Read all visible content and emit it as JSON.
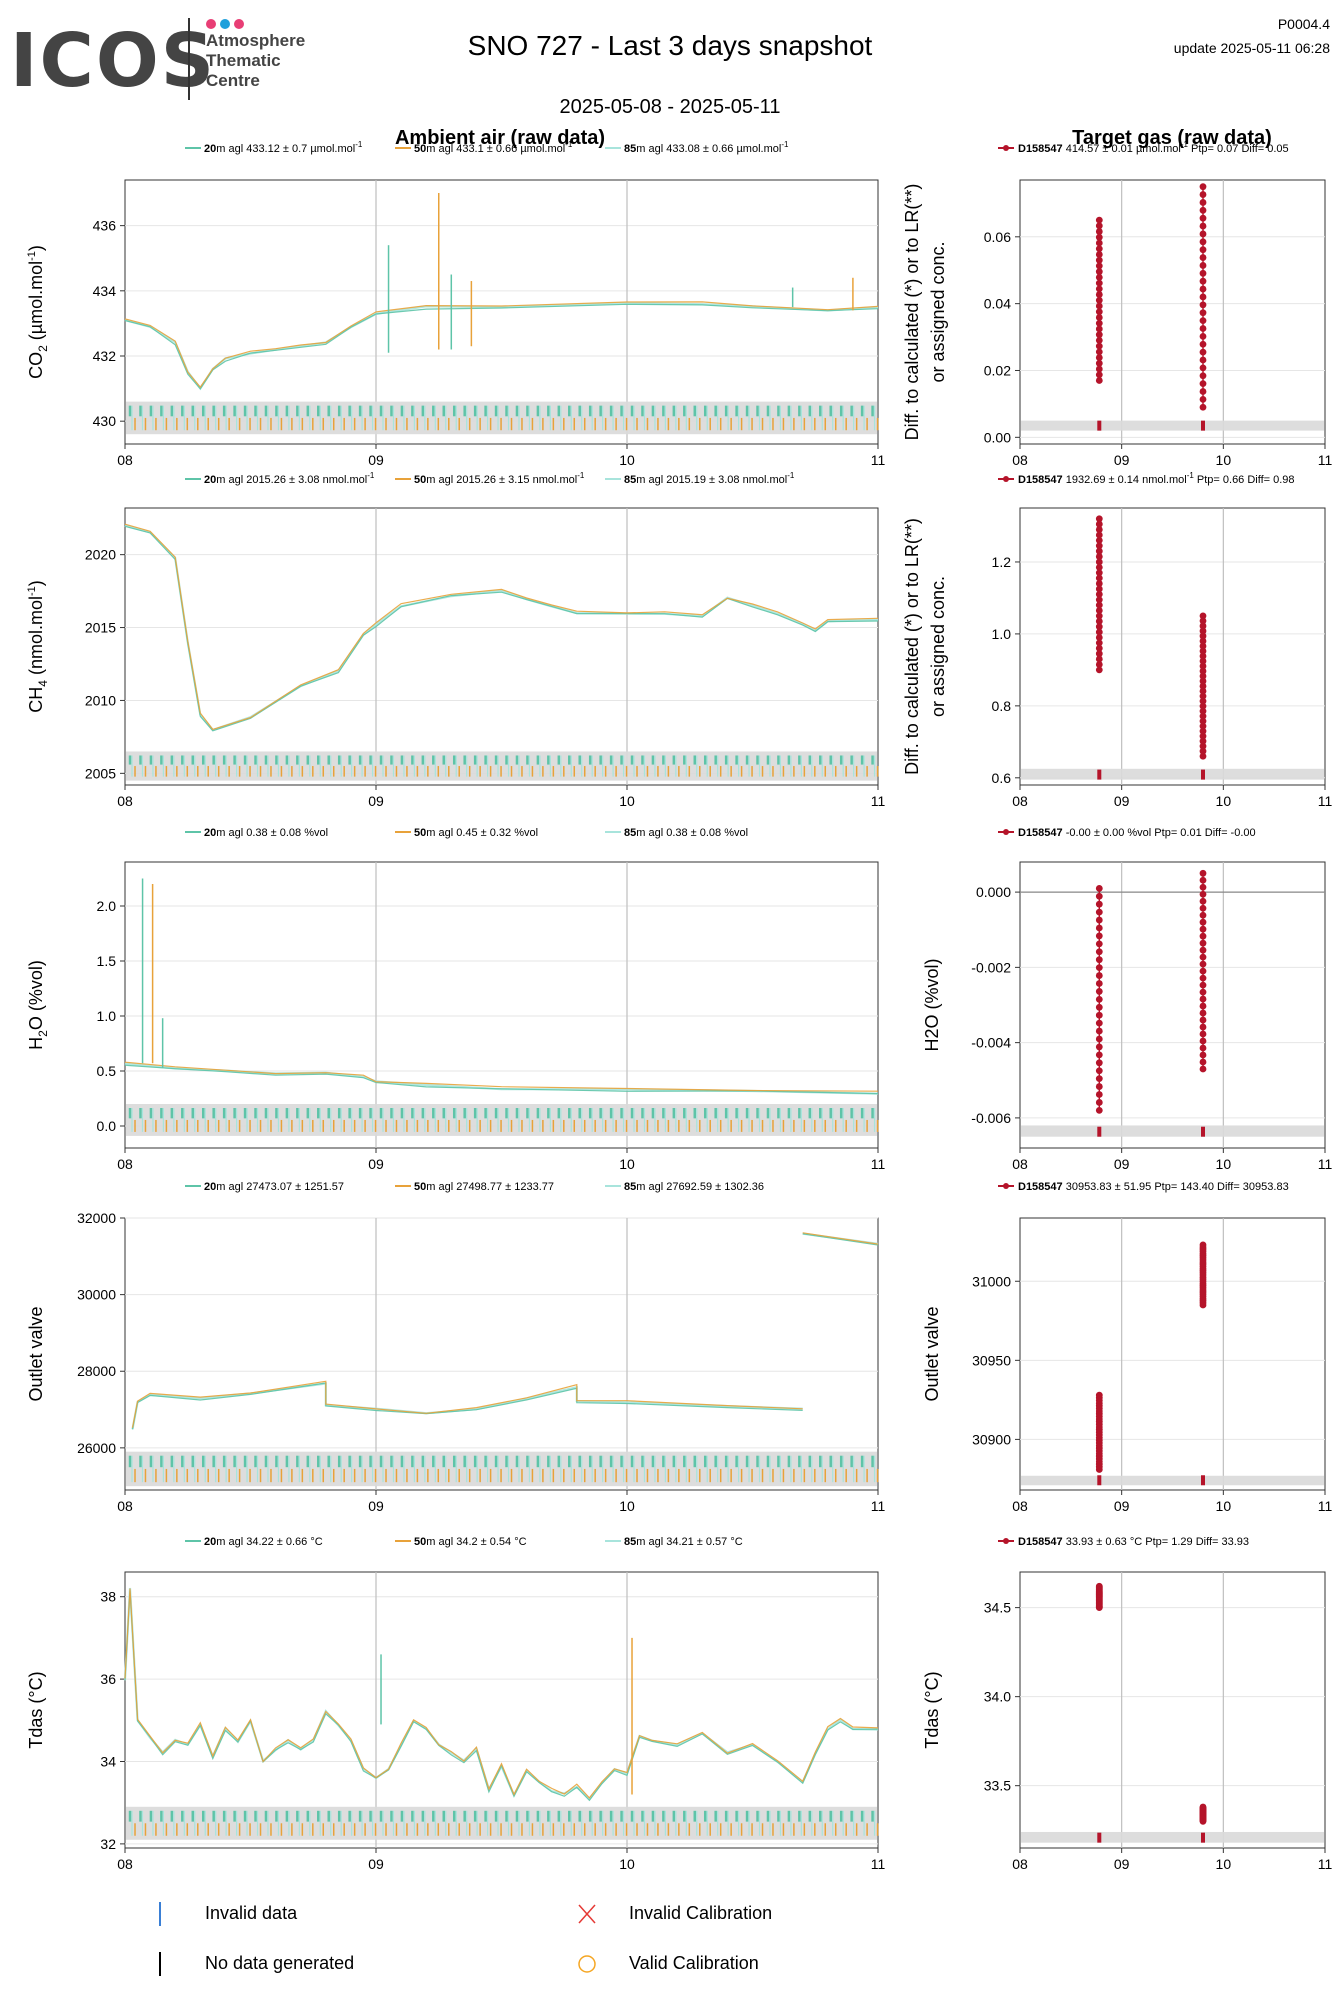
{
  "header": {
    "logo_letters": "ICOS",
    "logo_subtitle": [
      "Atmosphere",
      "Thematic",
      "Centre"
    ],
    "logo_dot_colors": [
      "#e83e75",
      "#1fa0dc",
      "#e83e75"
    ],
    "title": "SNO 727 - Last 3 days snapshot",
    "date_range": "2025-05-08 - 2025-05-11",
    "ref_code": "P0004.4",
    "update": "update  2025-05-11 06:28"
  },
  "sections": {
    "ambient_title": "Ambient air (raw data)",
    "target_title": "Target gas (raw data)"
  },
  "colors": {
    "h20": "#5ec4a8",
    "h50": "#e8a23a",
    "h85": "#a8e4dc",
    "target": "#b5142a",
    "band": "#d9d9d9",
    "invalid_data": "#3a7fd5",
    "no_data": "#000000",
    "invalid_cal": "#e53935",
    "valid_cal": "#f5a623"
  },
  "chart_data": [
    {
      "type": "line",
      "panel": "CO2 ambient",
      "ylabel_main": "CO",
      "ylabel_sub": "2",
      "ylabel_unit": " (µmol.mol",
      "ylabel_sup": "-1",
      "ylabel_end": ")",
      "x_ticks": [
        "08",
        "09",
        "10",
        "11"
      ],
      "xlim": [
        0,
        3
      ],
      "ylim": [
        429.3,
        437.4
      ],
      "y_ticks": [
        430,
        432,
        434,
        436
      ],
      "band": [
        429.6,
        430.6
      ],
      "legend": [
        {
          "height": "20",
          "text": "m agl 433.12 ± 0.7 µmol.mol",
          "sup": "-1"
        },
        {
          "height": "50",
          "text": "m agl 433.1 ± 0.66 µmol.mol",
          "sup": "-1"
        },
        {
          "height": "85",
          "text": "m agl 433.08 ± 0.66 µmol.mol",
          "sup": "-1"
        }
      ],
      "series": [
        {
          "name": "20m",
          "x": [
            0.0,
            0.1,
            0.2,
            0.25,
            0.3,
            0.35,
            0.4,
            0.5,
            0.6,
            0.7,
            0.8,
            0.9,
            1.0,
            1.2,
            1.5,
            2.0,
            2.3,
            2.5,
            2.8,
            3.0
          ],
          "y": [
            433.1,
            432.9,
            432.4,
            431.5,
            431.0,
            431.6,
            431.9,
            432.1,
            432.2,
            432.3,
            432.4,
            432.9,
            433.3,
            433.5,
            433.5,
            433.6,
            433.6,
            433.5,
            433.4,
            433.5
          ]
        }
      ],
      "spikes": [
        {
          "x": 1.05,
          "y": 435.4
        },
        {
          "x": 1.25,
          "y": 437.0
        },
        {
          "x": 1.3,
          "y": 434.5
        },
        {
          "x": 1.38,
          "y": 434.3
        },
        {
          "x": 2.66,
          "y": 434.1
        },
        {
          "x": 2.9,
          "y": 434.4
        }
      ]
    },
    {
      "type": "scatter",
      "panel": "CO2 target",
      "ylabel_lines": [
        "Diff. to calculated (*) or to LR(**)",
        "or assigned conc."
      ],
      "x_ticks": [
        "08",
        "09",
        "10",
        "11"
      ],
      "xlim": [
        0,
        3
      ],
      "ylim": [
        -0.002,
        0.077
      ],
      "y_ticks": [
        0.0,
        0.02,
        0.04,
        0.06
      ],
      "y_tick_labels": [
        "0.00",
        "0.02",
        "0.04",
        "0.06"
      ],
      "band": [
        0.002,
        0.005
      ],
      "legend": {
        "id": "D158547",
        "text": " 414.57 ± 0.01 µmol.mol",
        "sup": "-1",
        "tail": " Ptp= 0.07 Diff= 0.05"
      },
      "groups": [
        {
          "x": 0.78,
          "ymin": 0.017,
          "ymax": 0.065
        },
        {
          "x": 1.8,
          "ymin": 0.009,
          "ymax": 0.075
        }
      ]
    },
    {
      "type": "line",
      "panel": "CH4 ambient",
      "ylabel_main": "CH",
      "ylabel_sub": "4",
      "ylabel_unit": " (nmol.mol",
      "ylabel_sup": "-1",
      "ylabel_end": ")",
      "x_ticks": [
        "08",
        "09",
        "10",
        "11"
      ],
      "xlim": [
        0,
        3
      ],
      "ylim": [
        2004.2,
        2023.2
      ],
      "y_ticks": [
        2005,
        2010,
        2015,
        2020
      ],
      "y_tick_labels": [
        "2005",
        "2010",
        "2015",
        "2020"
      ],
      "band": [
        2004.5,
        2006.5
      ],
      "legend": [
        {
          "height": "20",
          "text": "m agl 2015.26 ± 3.08 nmol.mol",
          "sup": "-1"
        },
        {
          "height": "50",
          "text": "m agl 2015.26 ± 3.15 nmol.mol",
          "sup": "-1"
        },
        {
          "height": "85",
          "text": "m agl 2015.19 ± 3.08 nmol.mol",
          "sup": "-1"
        }
      ],
      "series": [
        {
          "name": "20m",
          "x": [
            0.0,
            0.1,
            0.2,
            0.25,
            0.3,
            0.35,
            0.5,
            0.7,
            0.85,
            0.95,
            1.0,
            1.1,
            1.3,
            1.5,
            1.6,
            1.7,
            1.8,
            2.0,
            2.15,
            2.3,
            2.4,
            2.5,
            2.6,
            2.7,
            2.75,
            2.8,
            3.0
          ],
          "y": [
            2022.0,
            2021.5,
            2019.8,
            2014.0,
            2009.0,
            2008.0,
            2008.8,
            2011.0,
            2012.0,
            2014.5,
            2015.2,
            2016.5,
            2017.2,
            2017.5,
            2017.0,
            2016.5,
            2016.0,
            2016.0,
            2016.0,
            2015.8,
            2017.0,
            2016.5,
            2016.0,
            2015.2,
            2014.8,
            2015.5,
            2015.5
          ]
        }
      ]
    },
    {
      "type": "scatter",
      "panel": "CH4 target",
      "ylabel_lines": [
        "Diff. to calculated (*) or to LR(**)",
        "or assigned conc."
      ],
      "x_ticks": [
        "08",
        "09",
        "10",
        "11"
      ],
      "xlim": [
        0,
        3
      ],
      "ylim": [
        0.58,
        1.35
      ],
      "y_ticks": [
        0.6,
        0.8,
        1.0,
        1.2
      ],
      "y_tick_labels": [
        "0.6",
        "0.8",
        "1.0",
        "1.2"
      ],
      "band": [
        0.595,
        0.625
      ],
      "legend": {
        "id": "D158547",
        "text": " 1932.69 ± 0.14 nmol.mol",
        "sup": "-1",
        "tail": " Ptp= 0.66 Diff= 0.98"
      },
      "groups": [
        {
          "x": 0.78,
          "ymin": 0.9,
          "ymax": 1.32
        },
        {
          "x": 1.8,
          "ymin": 0.66,
          "ymax": 1.05
        }
      ]
    },
    {
      "type": "line",
      "panel": "H2O ambient",
      "ylabel_main": "H",
      "ylabel_sub": "2",
      "ylabel_unit": "O (%vol)",
      "ylabel_sup": "",
      "ylabel_end": "",
      "x_ticks": [
        "08",
        "09",
        "10",
        "11"
      ],
      "xlim": [
        0,
        3
      ],
      "ylim": [
        -0.2,
        2.4
      ],
      "y_ticks": [
        0.0,
        0.5,
        1.0,
        1.5,
        2.0
      ],
      "y_tick_labels": [
        "0.0",
        "0.5",
        "1.0",
        "1.5",
        "2.0"
      ],
      "band": [
        -0.09,
        0.2
      ],
      "legend": [
        {
          "height": "20",
          "text": "m agl 0.38 ± 0.08 %vol",
          "sup": ""
        },
        {
          "height": "50",
          "text": "m agl 0.45 ± 0.32 %vol",
          "sup": ""
        },
        {
          "height": "85",
          "text": "m agl 0.38 ± 0.08 %vol",
          "sup": ""
        }
      ],
      "series": [
        {
          "name": "20m",
          "x": [
            0.0,
            0.2,
            0.4,
            0.6,
            0.8,
            0.95,
            1.0,
            1.2,
            1.5,
            2.0,
            2.5,
            3.0
          ],
          "y": [
            0.57,
            0.53,
            0.5,
            0.47,
            0.48,
            0.45,
            0.4,
            0.37,
            0.34,
            0.33,
            0.32,
            0.3
          ]
        }
      ],
      "spikes": [
        {
          "x": 0.07,
          "y": 2.25
        },
        {
          "x": 0.11,
          "y": 2.2
        },
        {
          "x": 0.15,
          "y": 0.98
        }
      ]
    },
    {
      "type": "scatter",
      "panel": "H2O target",
      "ylabel_lines": [
        "H2O (%vol)"
      ],
      "x_ticks": [
        "08",
        "09",
        "10",
        "11"
      ],
      "xlim": [
        0,
        3
      ],
      "ylim": [
        -0.0068,
        0.0008
      ],
      "y_ticks": [
        -0.006,
        -0.004,
        -0.002,
        0.0
      ],
      "y_tick_labels": [
        "-0.006",
        "-0.004",
        "-0.002",
        "0.000"
      ],
      "zero_line": true,
      "band": [
        -0.0065,
        -0.0062
      ],
      "legend": {
        "id": "D158547",
        "text": " -0.00 ± 0.00 %vol",
        "sup": "",
        "tail": " Ptp= 0.01 Diff= -0.00"
      },
      "groups": [
        {
          "x": 0.78,
          "ymin": -0.0058,
          "ymax": 0.0001
        },
        {
          "x": 1.8,
          "ymin": -0.0047,
          "ymax": 0.0005
        }
      ]
    },
    {
      "type": "line",
      "panel": "Outlet valve ambient",
      "ylabel_main": "Outlet valve",
      "ylabel_sub": "",
      "ylabel_unit": "",
      "ylabel_sup": "",
      "ylabel_end": "",
      "x_ticks": [
        "08",
        "09",
        "10",
        "11"
      ],
      "xlim": [
        0,
        3
      ],
      "ylim": [
        24900,
        32000
      ],
      "y_ticks": [
        26000,
        28000,
        30000,
        32000
      ],
      "y_tick_labels": [
        "26000",
        "28000",
        "30000",
        "32000"
      ],
      "band": [
        25000,
        25900
      ],
      "legend": [
        {
          "height": "20",
          "text": "m agl 27473.07 ± 1251.57",
          "sup": ""
        },
        {
          "height": "50",
          "text": "m agl 27498.77 ± 1233.77",
          "sup": ""
        },
        {
          "height": "85",
          "text": "m agl 27692.59 ± 1302.36",
          "sup": ""
        }
      ],
      "series": [
        {
          "name": "20m",
          "x": [
            0.03,
            0.05,
            0.1,
            0.3,
            0.5,
            0.8,
            0.8,
            1.0,
            1.2,
            1.4,
            1.6,
            1.8,
            1.8,
            2.0,
            2.4,
            2.7
          ],
          "y": [
            26500,
            27200,
            27400,
            27300,
            27400,
            27700,
            27100,
            27000,
            26900,
            27000,
            27300,
            27600,
            27200,
            27200,
            27100,
            27000
          ]
        },
        {
          "name": "85m-late",
          "x": [
            2.7,
            3.0
          ],
          "y": [
            31600,
            31300
          ]
        }
      ]
    },
    {
      "type": "scatter",
      "panel": "Outlet valve target",
      "ylabel_lines": [
        "Outlet valve"
      ],
      "x_ticks": [
        "08",
        "09",
        "10",
        "11"
      ],
      "xlim": [
        0,
        3
      ],
      "ylim": [
        30868,
        31040
      ],
      "y_ticks": [
        30900,
        30950,
        31000
      ],
      "y_tick_labels": [
        "30900",
        "30950",
        "31000"
      ],
      "band": [
        30871,
        30877
      ],
      "legend": {
        "id": "D158547",
        "text": " 30953.83 ± 51.95 ",
        "sup": "",
        "tail": " Ptp= 143.40 Diff= 30953.83"
      },
      "groups": [
        {
          "x": 0.78,
          "ymin": 30881,
          "ymax": 30928
        },
        {
          "x": 1.8,
          "ymin": 30985,
          "ymax": 31023
        }
      ]
    },
    {
      "type": "line",
      "panel": "Tdas ambient",
      "ylabel_main": "Tdas (°C)",
      "ylabel_sub": "",
      "ylabel_unit": "",
      "ylabel_sup": "",
      "ylabel_end": "",
      "x_ticks": [
        "08",
        "09",
        "10",
        "11"
      ],
      "xlim": [
        0,
        3
      ],
      "ylim": [
        31.9,
        38.6
      ],
      "y_ticks": [
        32,
        34,
        36,
        38
      ],
      "y_tick_labels": [
        "32",
        "34",
        "36",
        "38"
      ],
      "band": [
        32.1,
        32.9
      ],
      "legend": [
        {
          "height": "20",
          "text": "m agl 34.22 ± 0.66 °C",
          "sup": ""
        },
        {
          "height": "50",
          "text": "m agl 34.2 ± 0.54 °C",
          "sup": ""
        },
        {
          "height": "85",
          "text": "m agl 34.21 ± 0.57 °C",
          "sup": ""
        }
      ],
      "series": [
        {
          "name": "20m",
          "x": [
            0.0,
            0.02,
            0.05,
            0.1,
            0.15,
            0.2,
            0.25,
            0.3,
            0.35,
            0.4,
            0.45,
            0.5,
            0.55,
            0.6,
            0.65,
            0.7,
            0.75,
            0.8,
            0.85,
            0.9,
            0.95,
            1.0,
            1.05,
            1.1,
            1.15,
            1.2,
            1.25,
            1.3,
            1.35,
            1.4,
            1.45,
            1.5,
            1.55,
            1.6,
            1.65,
            1.7,
            1.75,
            1.8,
            1.85,
            1.9,
            1.95,
            2.0,
            2.05,
            2.1,
            2.2,
            2.3,
            2.4,
            2.5,
            2.6,
            2.7,
            2.75,
            2.8,
            2.85,
            2.9,
            3.0
          ],
          "y": [
            36.0,
            38.2,
            35.0,
            34.6,
            34.2,
            34.5,
            34.4,
            34.9,
            34.1,
            34.8,
            34.5,
            35.0,
            34.0,
            34.3,
            34.5,
            34.3,
            34.5,
            35.2,
            34.9,
            34.5,
            33.8,
            33.6,
            33.8,
            34.4,
            35.0,
            34.8,
            34.4,
            34.2,
            34.0,
            34.3,
            33.3,
            33.9,
            33.2,
            33.8,
            33.5,
            33.3,
            33.2,
            33.4,
            33.1,
            33.5,
            33.8,
            33.7,
            34.6,
            34.5,
            34.4,
            34.7,
            34.2,
            34.4,
            34.0,
            33.5,
            34.2,
            34.8,
            35.0,
            34.8,
            34.8
          ]
        }
      ],
      "spikes": [
        {
          "x": 1.02,
          "y": 36.6
        },
        {
          "x": 2.02,
          "y": 37.0
        }
      ]
    },
    {
      "type": "scatter",
      "panel": "Tdas target",
      "ylabel_lines": [
        "Tdas (°C)"
      ],
      "x_ticks": [
        "08",
        "09",
        "10",
        "11"
      ],
      "xlim": [
        0,
        3
      ],
      "ylim": [
        33.15,
        34.7
      ],
      "y_ticks": [
        33.5,
        34.0,
        34.5
      ],
      "y_tick_labels": [
        "33.5",
        "34.0",
        "34.5"
      ],
      "band": [
        33.18,
        33.24
      ],
      "legend": {
        "id": "D158547",
        "text": " 33.93 ± 0.63 °C",
        "sup": "",
        "tail": " Ptp= 1.29 Diff= 33.93"
      },
      "groups": [
        {
          "x": 0.78,
          "ymin": 34.5,
          "ymax": 34.62
        },
        {
          "x": 1.8,
          "ymin": 33.3,
          "ymax": 33.38
        }
      ]
    }
  ],
  "footer_legend": [
    {
      "symbol": "invalid-data",
      "label": "Invalid data"
    },
    {
      "symbol": "no-data",
      "label": "No data generated"
    },
    {
      "symbol": "invalid-calibration",
      "label": "Invalid Calibration"
    },
    {
      "symbol": "valid-calibration",
      "label": "Valid Calibration"
    }
  ]
}
